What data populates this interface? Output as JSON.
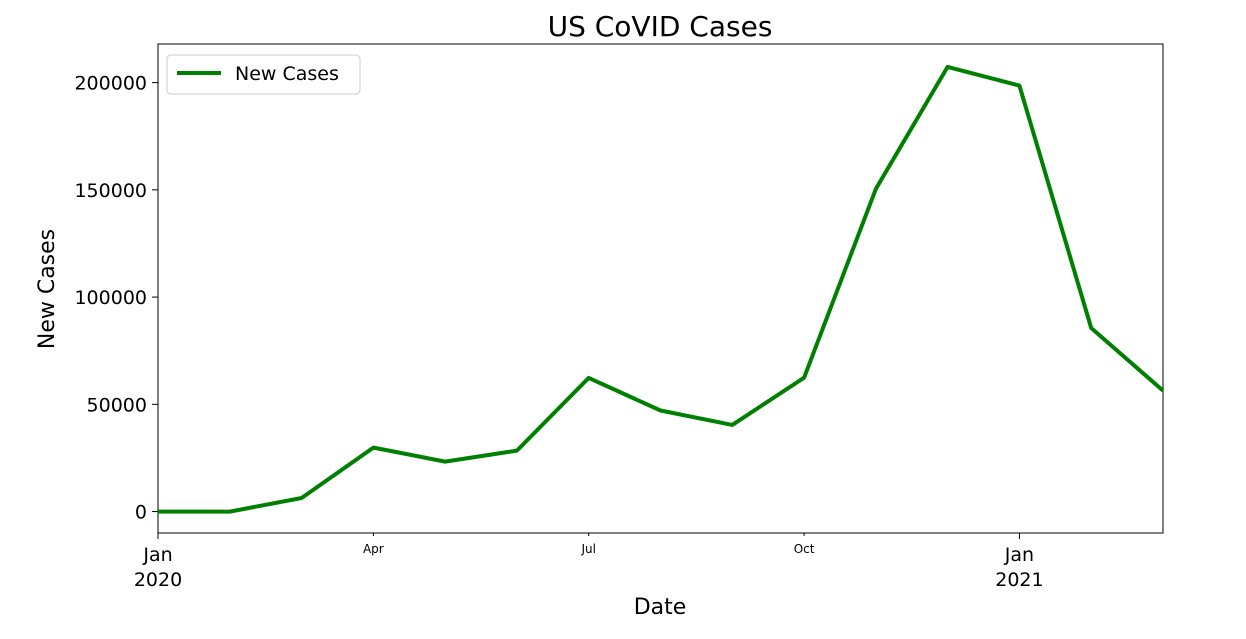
{
  "chart_data": {
    "type": "line",
    "title": "US CoVID Cases",
    "xlabel": "Date",
    "ylabel": "New Cases",
    "x": [
      "2020-01",
      "2020-02",
      "2020-03",
      "2020-04",
      "2020-05",
      "2020-06",
      "2020-07",
      "2020-08",
      "2020-09",
      "2020-10",
      "2020-11",
      "2020-12",
      "2021-01",
      "2021-02",
      "2021-03"
    ],
    "xlim": [
      "2020-01",
      "2021-03"
    ],
    "ylim": [
      -10000,
      218000
    ],
    "y_ticks": [
      0,
      50000,
      100000,
      150000,
      200000
    ],
    "y_tick_labels": [
      "0",
      "50000",
      "100000",
      "150000",
      "200000"
    ],
    "x_ticks": [
      {
        "date": "2020-01",
        "label": "Jan",
        "sublabel": "2020",
        "major": true
      },
      {
        "date": "2020-04",
        "label": "Apr",
        "major": false
      },
      {
        "date": "2020-07",
        "label": "Jul",
        "major": false
      },
      {
        "date": "2020-10",
        "label": "Oct",
        "major": false
      },
      {
        "date": "2021-01",
        "label": "Jan",
        "sublabel": "2021",
        "major": true
      }
    ],
    "series": [
      {
        "name": "New Cases",
        "color": "#008000",
        "values": [
          0,
          0,
          6300,
          29800,
          23300,
          28400,
          62300,
          47100,
          40400,
          62400,
          150500,
          207300,
          198600,
          85600,
          56400
        ]
      }
    ],
    "legend": "top-left",
    "grid": false
  }
}
